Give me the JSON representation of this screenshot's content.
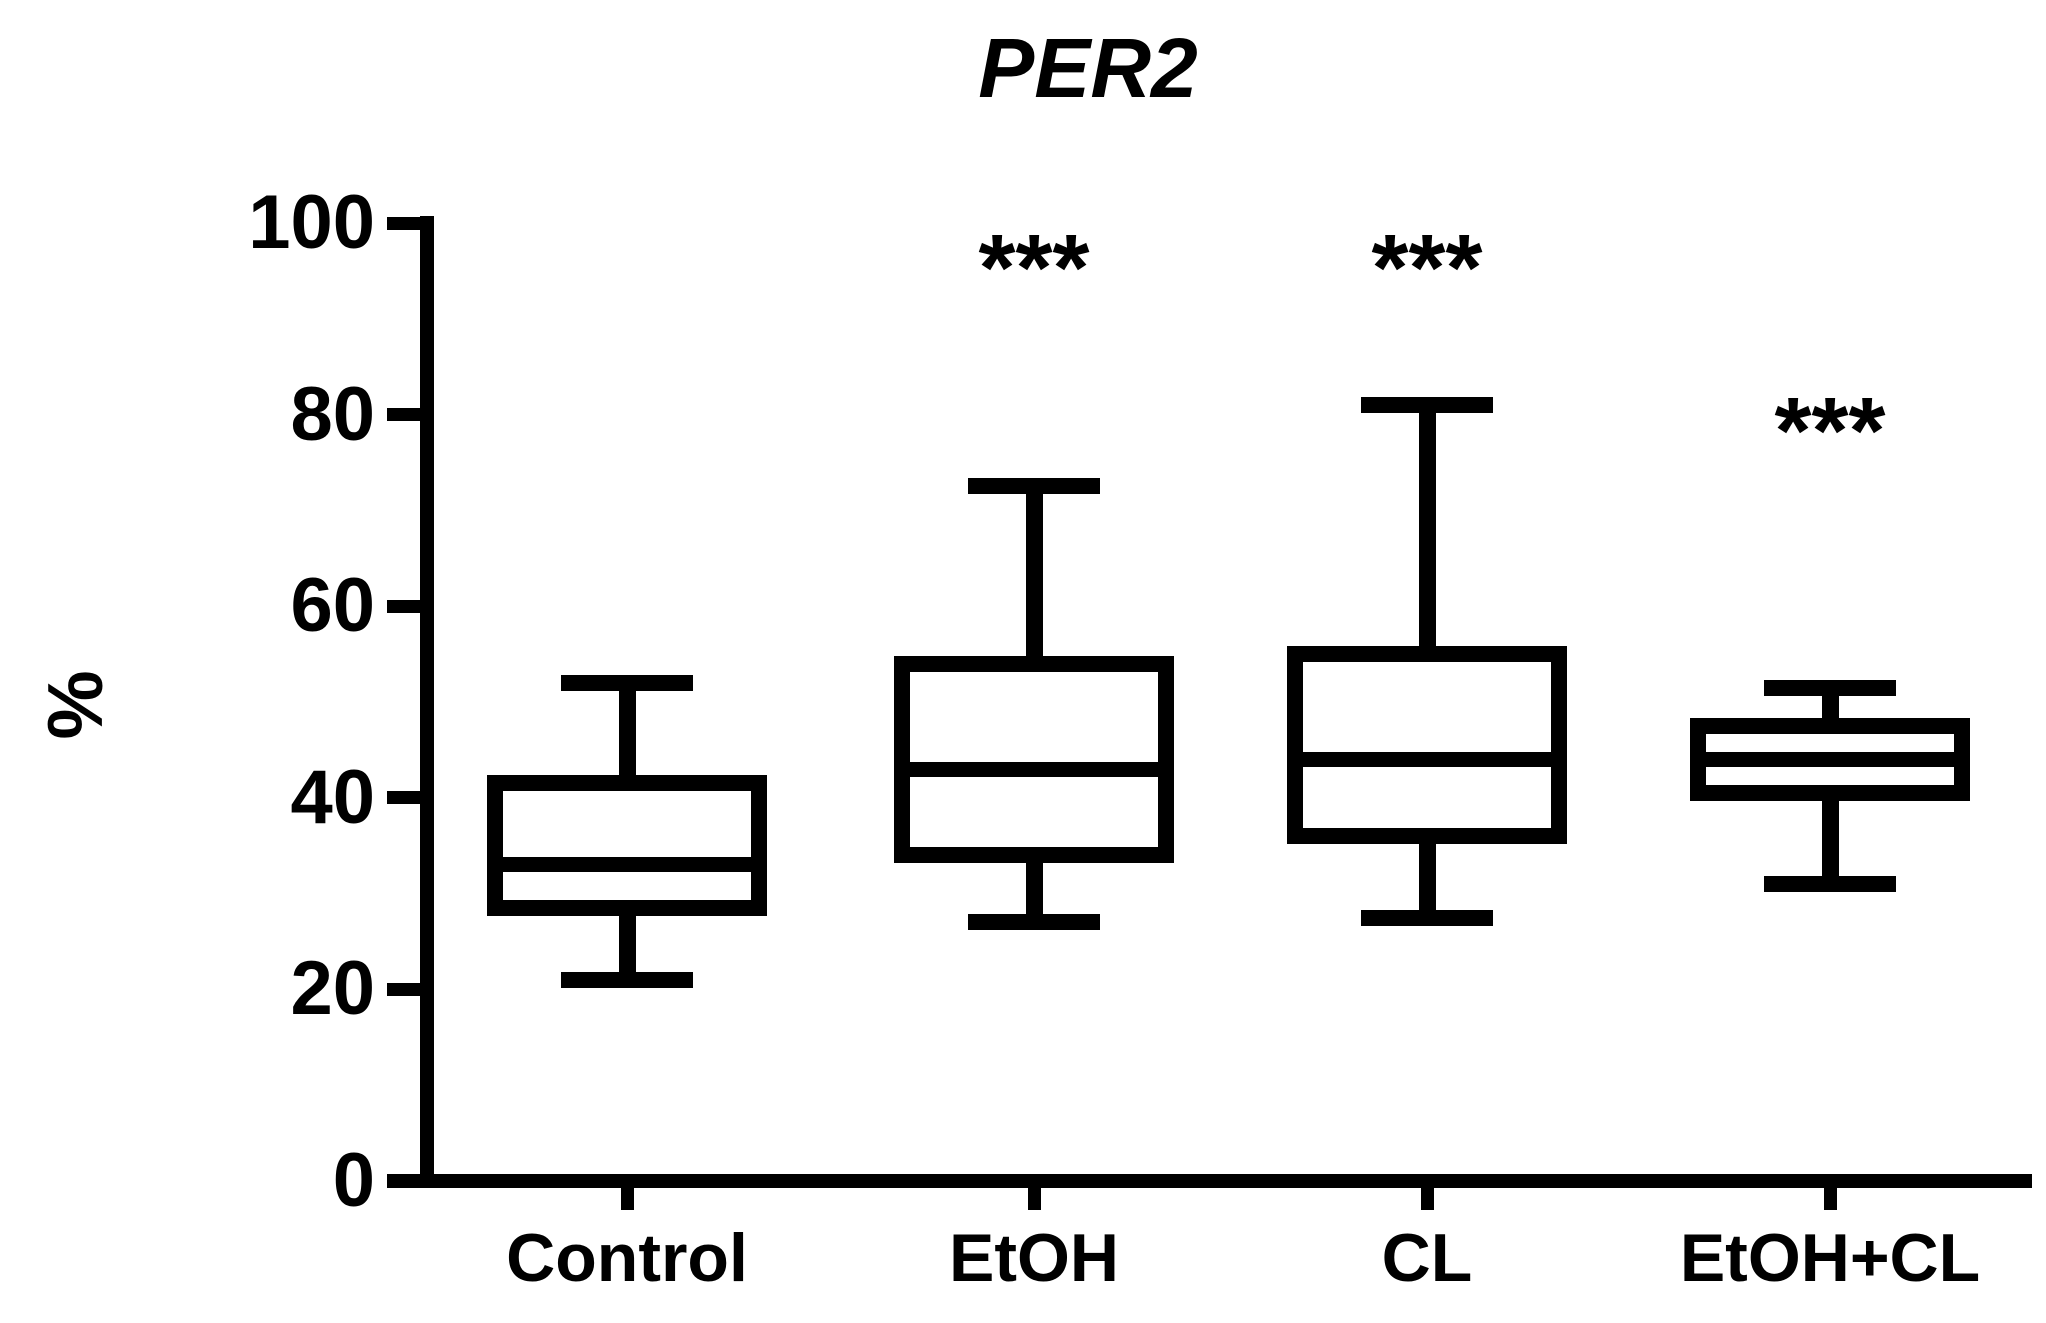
{
  "chart_data": {
    "type": "box",
    "title": "PER2",
    "ylabel": "%",
    "ylim": [
      0,
      100
    ],
    "yticks": [
      0,
      20,
      40,
      60,
      80,
      100
    ],
    "categories": [
      "Control",
      "EtOH",
      "CL",
      "EtOH+CL"
    ],
    "series": [
      {
        "name": "Control",
        "min": 21,
        "q1": 28.5,
        "median": 33,
        "q3": 41.5,
        "max": 52
      },
      {
        "name": "EtOH",
        "min": 27,
        "q1": 34,
        "median": 43,
        "q3": 54,
        "max": 72.5
      },
      {
        "name": "CL",
        "min": 27.5,
        "q1": 36,
        "median": 44,
        "q3": 55,
        "max": 81
      },
      {
        "name": "EtOH+CL",
        "min": 31,
        "q1": 40.5,
        "median": 44,
        "q3": 47.5,
        "max": 51.5
      }
    ],
    "annotations": [
      {
        "text": "***",
        "category": "EtOH",
        "y": 97
      },
      {
        "text": "***",
        "category": "CL",
        "y": 97
      },
      {
        "text": "***",
        "category": "EtOH+CL",
        "y": 80
      }
    ],
    "legend": "none",
    "grid": "off",
    "box_color": "#000000",
    "box_fill": "#ffffff",
    "background": "#ffffff"
  }
}
